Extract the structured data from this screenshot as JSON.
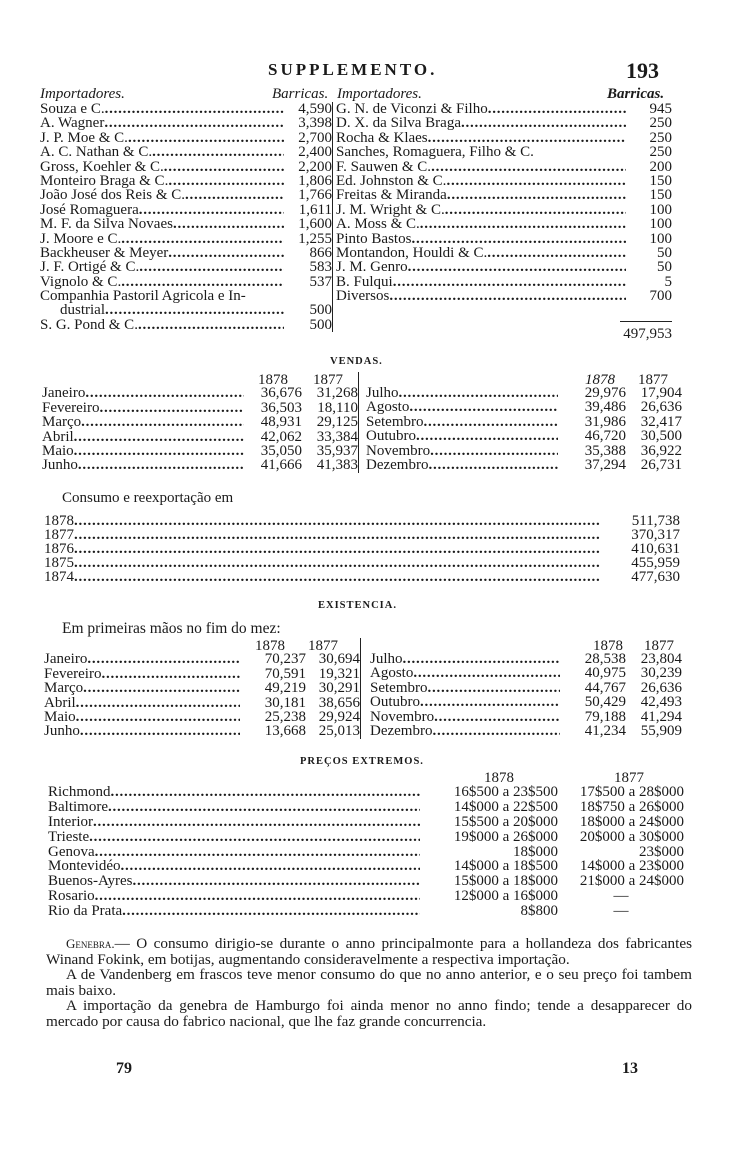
{
  "header": {
    "title": "SUPPLEMENTO.",
    "page_number": "193"
  },
  "importers": {
    "col_name": "Importadores.",
    "col_qty": "Barricas.",
    "left": [
      {
        "name": "Souza e C.",
        "qty": "4,590"
      },
      {
        "name": "A. Wagner",
        "qty": "3,398"
      },
      {
        "name": "J. P. Moe & C.",
        "qty": "2,700"
      },
      {
        "name": "A. C. Nathan & C.",
        "qty": "2,400"
      },
      {
        "name": "Gross, Koehler & C.",
        "qty": "2,200"
      },
      {
        "name": "Monteiro Braga & C.",
        "qty": "1,806"
      },
      {
        "name": "João José dos Reis & C.",
        "qty": "1,766"
      },
      {
        "name": "José Romaguera",
        "qty": "1,611"
      },
      {
        "name": "M. F. da Silva Novaes",
        "qty": "1,600"
      },
      {
        "name": "J. Moore e C.",
        "qty": "1,255"
      },
      {
        "name": "Backheuser & Meyer",
        "qty": "866"
      },
      {
        "name": "J. F. Ortigé & C.",
        "qty": "583"
      },
      {
        "name": "Vignolo & C.",
        "qty": "537"
      },
      {
        "name": "Companhia Pastoril Agricola e In-",
        "qty": "",
        "nolead": true
      },
      {
        "name": "dustrial",
        "qty": "500",
        "indent": true
      },
      {
        "name": "S. G. Pond & C.",
        "qty": "500"
      }
    ],
    "right": [
      {
        "name": "G. N. de Viconzi & Filho",
        "qty": "945"
      },
      {
        "name": "D. X. da Silva Braga",
        "qty": "250"
      },
      {
        "name": "Rocha & Klaes",
        "qty": "250"
      },
      {
        "name": "Sanches, Romaguera, Filho & C.",
        "qty": "250",
        "nolead": true
      },
      {
        "name": "F. Sauwen & C.",
        "qty": "200"
      },
      {
        "name": "Ed. Johnston & C.",
        "qty": "150"
      },
      {
        "name": "Freitas & Miranda",
        "qty": "150"
      },
      {
        "name": "J. M. Wright & C.",
        "qty": "100"
      },
      {
        "name": "A. Moss & C.",
        "qty": "100"
      },
      {
        "name": "Pinto Bastos",
        "qty": "100"
      },
      {
        "name": "Montandon, Houldi & C.",
        "qty": "50"
      },
      {
        "name": "J. M. Genro",
        "qty": "50"
      },
      {
        "name": "B. Fulqui",
        "qty": "5"
      },
      {
        "name": "Diversos",
        "qty": "700"
      }
    ],
    "total": "497,953"
  },
  "vendas": {
    "title": "VENDAS.",
    "year_a": "1878",
    "year_b": "1877",
    "left": [
      {
        "month": "Janeiro",
        "a": "36,676",
        "b": "31,268"
      },
      {
        "month": "Fevereiro",
        "a": "36,503",
        "b": "18,110"
      },
      {
        "month": "Março",
        "a": "48,931",
        "b": "29,125"
      },
      {
        "month": "Abril",
        "a": "42,062",
        "b": "33,384"
      },
      {
        "month": "Maio",
        "a": "35,050",
        "b": "35,937"
      },
      {
        "month": "Junho",
        "a": "41,666",
        "b": "41,383"
      }
    ],
    "right": [
      {
        "month": "Julho",
        "a": "29,976",
        "b": "17,904"
      },
      {
        "month": "Agosto",
        "a": "39,486",
        "b": "26,636"
      },
      {
        "month": "Setembro",
        "a": "31,986",
        "b": "32,417"
      },
      {
        "month": "Outubro",
        "a": "46,720",
        "b": "30,500"
      },
      {
        "month": "Novembro",
        "a": "35,388",
        "b": "36,922"
      },
      {
        "month": "Dezembro",
        "a": "37,294",
        "b": "26,731"
      }
    ]
  },
  "consumo": {
    "label": "Consumo e reexportação em",
    "rows": [
      {
        "year": "1878",
        "value": "511,738"
      },
      {
        "year": "1877",
        "value": "370,317"
      },
      {
        "year": "1876",
        "value": "410,631"
      },
      {
        "year": "1875",
        "value": "455,959"
      },
      {
        "year": "1874",
        "value": "477,630"
      }
    ]
  },
  "existencia": {
    "title": "EXISTENCIA.",
    "label": "Em primeiras mãos no fim do mez:",
    "year_a": "1878",
    "year_b": "1877",
    "left": [
      {
        "month": "Janeiro",
        "a": "70,237",
        "b": "30,694"
      },
      {
        "month": "Fevereiro",
        "a": "70,591",
        "b": "19,321"
      },
      {
        "month": "Março",
        "a": "49,219",
        "b": "30,291"
      },
      {
        "month": "Abril",
        "a": "30,181",
        "b": "38,656"
      },
      {
        "month": "Maio",
        "a": "25,238",
        "b": "29,924"
      },
      {
        "month": "Junho",
        "a": "13,668",
        "b": "25,013"
      }
    ],
    "right": [
      {
        "month": "Julho",
        "a": "28,538",
        "b": "23,804"
      },
      {
        "month": "Agosto",
        "a": "40,975",
        "b": "30,239"
      },
      {
        "month": "Setembro",
        "a": "44,767",
        "b": "26,636"
      },
      {
        "month": "Outubro",
        "a": "50,429",
        "b": "42,493"
      },
      {
        "month": "Novembro",
        "a": "79,188",
        "b": "41,294"
      },
      {
        "month": "Dezembro",
        "a": "41,234",
        "b": "55,909"
      }
    ]
  },
  "precos": {
    "title": "PREÇOS EXTREMOS.",
    "year_a": "1878",
    "year_b": "1877",
    "rows": [
      {
        "origin": "Richmond",
        "a": "16$500 a 23$500",
        "b": "17$500 a 28$000"
      },
      {
        "origin": "Baltimore",
        "a": "14$000 a 22$500",
        "b": "18$750 a 26$000"
      },
      {
        "origin": "Interior",
        "a": "15$500 a 20$000",
        "b": "18$000 a 24$000"
      },
      {
        "origin": "Trieste",
        "a": "19$000 a 26$000",
        "b": "20$000 a 30$000"
      },
      {
        "origin": "Genova",
        "a": "18$000",
        "b": "23$000"
      },
      {
        "origin": "Montevidéo",
        "a": "14$000 a 18$500",
        "b": "14$000 a 23$000"
      },
      {
        "origin": "Buenos-Ayres",
        "a": "15$000 a 18$000",
        "b": "21$000 a 24$000"
      },
      {
        "origin": "Rosario",
        "a": "12$000 a 16$000",
        "b": "—"
      },
      {
        "origin": "Rio da Prata",
        "a": "8$800",
        "b": "—"
      }
    ]
  },
  "text": {
    "genebra_label": "Genebra.",
    "p1": "— O consumo dirigio-se durante o anno principalmonte para a hollandeza dos fabricantes Winand Fokink, em botijas, augmentando consideravelmente a respectiva importação.",
    "p2": "A de Vandenberg em frascos teve menor consumo do que no anno anterior, e o seu preço foi tambem mais baixo.",
    "p3": "A importação da genebra de Hamburgo foi ainda menor no anno findo; tende a desapparecer do mercado por causa do fabrico nacional, que lhe faz grande concurrencia."
  },
  "footer": {
    "signature_left": "79",
    "signature_right": "13"
  }
}
